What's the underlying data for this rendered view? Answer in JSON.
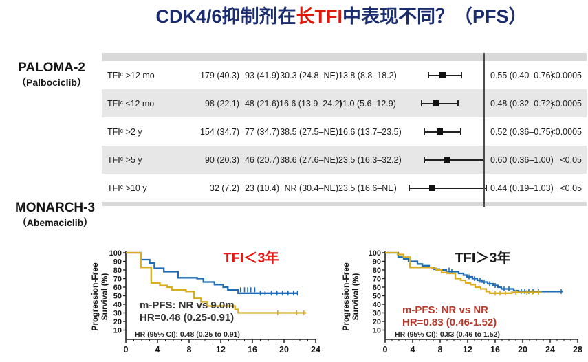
{
  "title": {
    "part1": "CDK4/6抑制剂在",
    "highlight": "长TFI",
    "part2": "中表现不同？（PFS）"
  },
  "left_labels": {
    "study1": "PALOMA-2",
    "drug1": "（Palbociclib）",
    "study2": "MONARCH-3",
    "drug2": "（Abemaciclib）"
  },
  "colors": {
    "title_navy": "#1b2d6e",
    "title_red": "#e01708",
    "curve_blue": "#1f6cb4",
    "curve_gold": "#d9ad1f",
    "row_alt_gray": "#e7e7e7",
    "strip_gray": "#d9d9d9",
    "forest_marker": "#111111",
    "ref_line": "#4a4a4a",
    "left_chart_title_red": "#ee1411",
    "right_annotation_red": "#b5382a"
  },
  "chart_data": [
    {
      "type": "forest-table",
      "ref_line": 1.0,
      "rows": [
        {
          "label": "TFIᶜ >12 mo",
          "n_a": "179 (40.3)",
          "n_b": "93 (41.9)",
          "mpfs_a": "30.3 (24.8–NE)",
          "mpfs_b": "13.8 (8.8–18.2)",
          "hr": 0.55,
          "ci_low": 0.4,
          "ci_high": 0.76,
          "hr_text": "0.55 (0.40–0.76)",
          "p_text": "<0.0005"
        },
        {
          "label": "TFIᶜ ≤12 mo",
          "n_a": "98 (22.1)",
          "n_b": "48 (21.6)",
          "mpfs_a": "16.6 (13.9–24.2)",
          "mpfs_b": "11.0 (5.6–12.9)",
          "hr": 0.48,
          "ci_low": 0.32,
          "ci_high": 0.72,
          "hr_text": "0.48 (0.32–0.72)",
          "p_text": "<0.0005"
        },
        {
          "label": "TFIᶜ >2 y",
          "n_a": "154 (34.7)",
          "n_b": "77 (34.7)",
          "mpfs_a": "38.5 (27.5–NE)",
          "mpfs_b": "16.6 (13.7–23.5)",
          "hr": 0.52,
          "ci_low": 0.36,
          "ci_high": 0.75,
          "hr_text": "0.52 (0.36–0.75)",
          "p_text": "<0.0005"
        },
        {
          "label": "TFIᶜ >5 y",
          "n_a": "90 (20.3)",
          "n_b": "46 (20.7)",
          "mpfs_a": "38.6 (27.6–NE)",
          "mpfs_b": "23.5 (16.3–32.2)",
          "hr": 0.6,
          "ci_low": 0.36,
          "ci_high": 1.0,
          "hr_text": "0.60 (0.36–1.00)",
          "p_text": "<0.05"
        },
        {
          "label": "TFIᶜ >10 y",
          "n_a": "32 (7.2)",
          "n_b": "23 (10.4)",
          "mpfs_a": "NR (30.4–NE)",
          "mpfs_b": "23.5 (16.6–NE)",
          "hr": 0.44,
          "ci_low": 0.19,
          "ci_high": 1.03,
          "hr_text": "0.44 (0.19–1.03)",
          "p_text": "<0.05"
        }
      ]
    },
    {
      "type": "line",
      "title": "TFI＜3年",
      "title_color": "#ee1411",
      "ylabel_lines": [
        "Progression-Free",
        "Survival (%)"
      ],
      "xlabel": "",
      "xlim": [
        0,
        24
      ],
      "ylim": [
        0,
        100
      ],
      "x_ticks": [
        0,
        4,
        8,
        12,
        16,
        20,
        24
      ],
      "y_ticks": [
        100,
        90,
        80,
        70,
        60,
        50,
        40,
        30,
        20,
        10
      ],
      "grid": false,
      "legend": "none",
      "annotation_lines": [
        "m-PFS: NR vs 9.0m",
        "HR=0.48 (0.25-0.91)"
      ],
      "annotation_color": "#333333",
      "footnote": "HR (95% CI): 0.48 (0.25 to 0.91)",
      "series": [
        {
          "name": "blue-curve",
          "color": "#1f6cb4",
          "points": [
            [
              0,
              100
            ],
            [
              1.9,
              100
            ],
            [
              1.9,
              92
            ],
            [
              3.0,
              92
            ],
            [
              3.0,
              88
            ],
            [
              3.6,
              88
            ],
            [
              3.6,
              82
            ],
            [
              4.8,
              82
            ],
            [
              4.8,
              78
            ],
            [
              6.6,
              78
            ],
            [
              6.6,
              71
            ],
            [
              9.0,
              71
            ],
            [
              9.0,
              70
            ],
            [
              9.8,
              70
            ],
            [
              9.8,
              66
            ],
            [
              11.2,
              66
            ],
            [
              11.2,
              63
            ],
            [
              12.3,
              63
            ],
            [
              12.3,
              60
            ],
            [
              12.9,
              60
            ],
            [
              12.9,
              57
            ],
            [
              14.2,
              57
            ],
            [
              14.2,
              53
            ],
            [
              21.8,
              53
            ]
          ],
          "censors": [
            [
              14.5,
              57
            ],
            [
              15.0,
              57
            ],
            [
              15.4,
              57
            ],
            [
              15.8,
              57
            ],
            [
              16.3,
              57
            ],
            [
              17.0,
              53
            ],
            [
              17.6,
              53
            ],
            [
              18.4,
              53
            ],
            [
              19.1,
              53
            ],
            [
              19.8,
              53
            ],
            [
              20.5,
              53
            ],
            [
              21.2,
              53
            ],
            [
              21.7,
              53
            ]
          ]
        },
        {
          "name": "gold-curve",
          "color": "#d9ad1f",
          "points": [
            [
              0,
              100
            ],
            [
              1.9,
              100
            ],
            [
              1.9,
              83
            ],
            [
              3.2,
              83
            ],
            [
              3.2,
              65
            ],
            [
              4.3,
              65
            ],
            [
              4.3,
              62
            ],
            [
              5.2,
              62
            ],
            [
              5.2,
              60
            ],
            [
              5.8,
              60
            ],
            [
              5.8,
              57
            ],
            [
              7.6,
              57
            ],
            [
              7.6,
              55
            ],
            [
              8.6,
              55
            ],
            [
              8.6,
              47
            ],
            [
              9.5,
              47
            ],
            [
              9.5,
              43
            ],
            [
              10.3,
              43
            ],
            [
              10.3,
              38
            ],
            [
              13.8,
              38
            ],
            [
              13.8,
              34
            ],
            [
              14.2,
              34
            ],
            [
              14.2,
              30
            ],
            [
              22.8,
              30
            ]
          ],
          "censors": [
            [
              19.2,
              30
            ],
            [
              21.6,
              30
            ],
            [
              22.5,
              30
            ]
          ]
        }
      ]
    },
    {
      "type": "line",
      "title": "TFI＞3年",
      "title_color": "#1a1a1a",
      "ylabel_lines": [
        "Progression-Free",
        "Survival (%)"
      ],
      "xlabel": "",
      "xlim": [
        0,
        28
      ],
      "ylim": [
        0,
        100
      ],
      "x_ticks": [
        0,
        4,
        8,
        12,
        16,
        20,
        24,
        28
      ],
      "y_ticks": [
        100,
        90,
        80,
        70,
        60,
        50,
        40,
        30,
        20,
        10
      ],
      "grid": false,
      "legend": "none",
      "annotation_lines": [
        "m-PFS: NR vs NR",
        "HR=0.83 (0.46-1.52)"
      ],
      "annotation_color": "#b5382a",
      "footnote": "HR (95% CI): 0.83 (0.46 to 1.52)",
      "series": [
        {
          "name": "blue-curve",
          "color": "#1f6cb4",
          "points": [
            [
              0,
              100
            ],
            [
              1.9,
              100
            ],
            [
              1.9,
              95
            ],
            [
              2.7,
              95
            ],
            [
              2.7,
              93
            ],
            [
              3.4,
              93
            ],
            [
              3.4,
              90
            ],
            [
              4.7,
              90
            ],
            [
              4.7,
              87
            ],
            [
              5.4,
              87
            ],
            [
              5.4,
              85
            ],
            [
              6.4,
              85
            ],
            [
              6.4,
              83
            ],
            [
              7.1,
              83
            ],
            [
              7.1,
              81
            ],
            [
              7.9,
              81
            ],
            [
              7.9,
              80
            ],
            [
              8.9,
              80
            ],
            [
              8.9,
              78
            ],
            [
              10.7,
              78
            ],
            [
              10.7,
              76
            ],
            [
              11.4,
              76
            ],
            [
              11.4,
              74
            ],
            [
              11.9,
              74
            ],
            [
              11.9,
              72
            ],
            [
              12.7,
              72
            ],
            [
              12.7,
              70
            ],
            [
              13.4,
              70
            ],
            [
              13.4,
              68
            ],
            [
              14.1,
              68
            ],
            [
              14.1,
              66
            ],
            [
              14.9,
              66
            ],
            [
              14.9,
              64
            ],
            [
              15.7,
              64
            ],
            [
              15.7,
              62
            ],
            [
              16.4,
              62
            ],
            [
              16.4,
              60
            ],
            [
              16.9,
              60
            ],
            [
              16.9,
              58
            ],
            [
              18.7,
              58
            ],
            [
              18.7,
              56
            ],
            [
              19.4,
              56
            ],
            [
              19.4,
              55
            ],
            [
              25.8,
              55
            ]
          ],
          "censors": [
            [
              9.3,
              80
            ],
            [
              9.7,
              78
            ],
            [
              12.2,
              72
            ],
            [
              13.0,
              70
            ],
            [
              13.8,
              68
            ],
            [
              14.4,
              66
            ],
            [
              15.2,
              64
            ],
            [
              16.0,
              62
            ],
            [
              17.3,
              58
            ],
            [
              18.0,
              58
            ],
            [
              19.8,
              55
            ],
            [
              20.3,
              55
            ],
            [
              20.9,
              55
            ],
            [
              21.5,
              55
            ],
            [
              22.3,
              55
            ],
            [
              25.6,
              55
            ]
          ]
        },
        {
          "name": "gold-curve",
          "color": "#d9ad1f",
          "points": [
            [
              0,
              100
            ],
            [
              1.8,
              100
            ],
            [
              1.8,
              98
            ],
            [
              2.7,
              98
            ],
            [
              2.7,
              95
            ],
            [
              3.6,
              95
            ],
            [
              3.6,
              83
            ],
            [
              6.8,
              83
            ],
            [
              6.8,
              82
            ],
            [
              7.4,
              82
            ],
            [
              7.4,
              80
            ],
            [
              8.2,
              80
            ],
            [
              8.2,
              77
            ],
            [
              9.0,
              77
            ],
            [
              9.0,
              76
            ],
            [
              10.2,
              76
            ],
            [
              10.2,
              70
            ],
            [
              11.0,
              70
            ],
            [
              11.0,
              68
            ],
            [
              11.7,
              68
            ],
            [
              11.7,
              65
            ],
            [
              12.4,
              65
            ],
            [
              12.4,
              63
            ],
            [
              13.1,
              63
            ],
            [
              13.1,
              60
            ],
            [
              13.9,
              60
            ],
            [
              13.9,
              58
            ],
            [
              14.7,
              58
            ],
            [
              14.7,
              55
            ],
            [
              15.2,
              55
            ],
            [
              15.2,
              53
            ],
            [
              18.4,
              53
            ],
            [
              18.4,
              54
            ],
            [
              22.8,
              54
            ]
          ],
          "censors": [
            [
              16.0,
              53
            ],
            [
              16.7,
              53
            ],
            [
              17.5,
              53
            ],
            [
              19.0,
              54
            ],
            [
              20.6,
              54
            ],
            [
              21.4,
              54
            ],
            [
              22.3,
              54
            ]
          ]
        }
      ]
    }
  ]
}
